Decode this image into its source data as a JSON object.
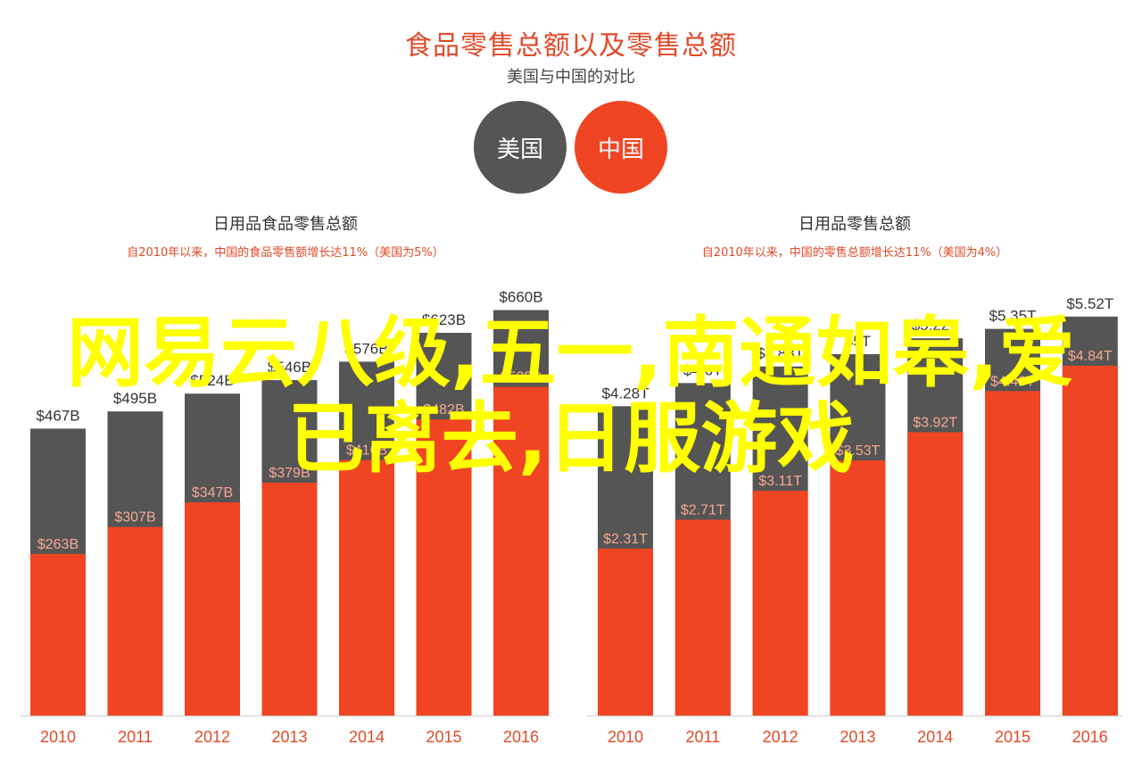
{
  "header": {
    "title": "食品零售总额以及零售总额",
    "subtitle": "美国与中国的对比"
  },
  "legend": {
    "us_label": "美国",
    "cn_label": "中国"
  },
  "colors": {
    "total": "#555555",
    "food": "#f04523",
    "title": "#e04a2a",
    "axis_text": "#e04a2a"
  },
  "overlay_text": "网易云八级,五一,南通如皋,爱已离去,日服游戏",
  "chart_data": [
    {
      "type": "bar",
      "title": "日用品食品零售总额",
      "subtitle": "自2010年以来，中国的食品零售额增长达11%（美国为5%）",
      "categories": [
        "2010",
        "2011",
        "2012",
        "2013",
        "2014",
        "2015",
        "2016"
      ],
      "ylim": [
        0,
        700
      ],
      "series": [
        {
          "values": [
            467,
            495,
            524,
            546,
            576,
            623,
            660
          ],
          "labels": [
            "$467B",
            "$495B",
            "$524B",
            "$546B",
            "$576B",
            "$623B",
            "$660B"
          ]
        },
        {
          "values": [
            263,
            307,
            347,
            379,
            416,
            482,
            535
          ],
          "labels": [
            "$263B",
            "$307B",
            "$347B",
            "$379B",
            "$416B",
            "$482B",
            "$535B"
          ]
        }
      ]
    },
    {
      "type": "bar",
      "title": "日用品零售总额",
      "subtitle": "自2010年以来，中国的零售总额增长达11%（美国为4%）",
      "categories": [
        "2010",
        "2011",
        "2012",
        "2013",
        "2014",
        "2015",
        "2016"
      ],
      "ylim": [
        0,
        5.95
      ],
      "series": [
        {
          "values": [
            4.28,
            4.6,
            4.83,
            5,
            5.22,
            5.35,
            5.52
          ],
          "labels": [
            "$4.28T",
            "$4.6T",
            "$4.83T",
            "$5T",
            "$5.22T",
            "$5.35T",
            "$5.52T"
          ]
        },
        {
          "values": [
            2.31,
            2.71,
            3.11,
            3.53,
            3.92,
            4.49,
            4.84
          ],
          "labels": [
            "$2.31T",
            "$2.71T",
            "$3.11T",
            "$3.53T",
            "$3.92T",
            "$4.49T",
            "$4.84T"
          ]
        }
      ]
    }
  ]
}
